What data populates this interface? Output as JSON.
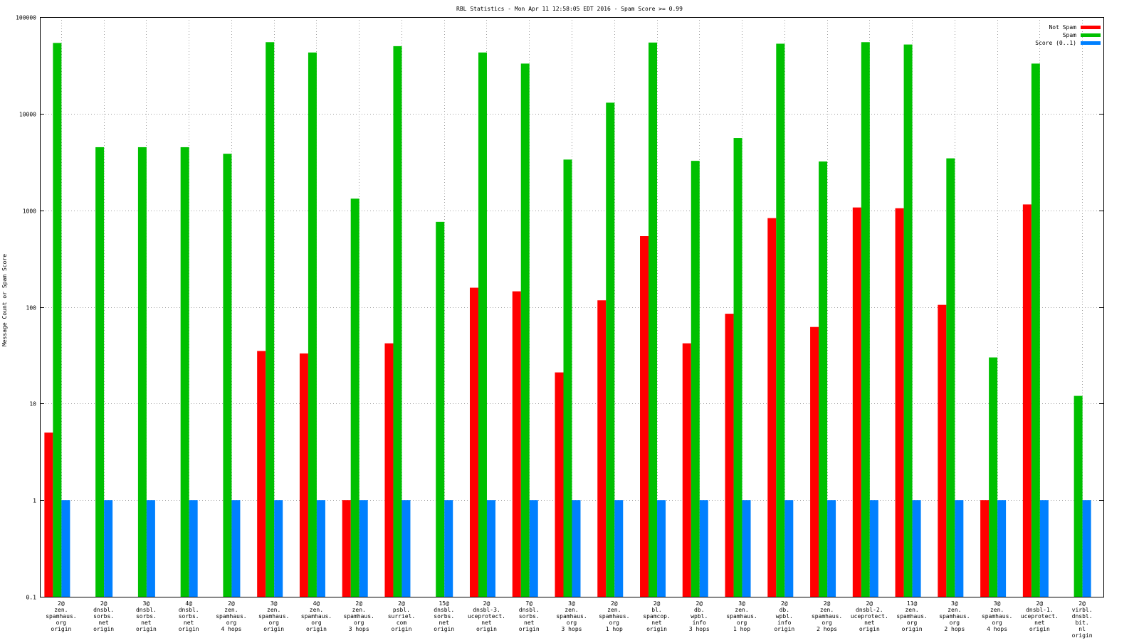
{
  "colors": {
    "not_spam": "#ff0000",
    "spam": "#00c000",
    "score": "#0080ff",
    "grid": "#a0a0a0",
    "axis": "#000000",
    "background": "#ffffff"
  },
  "chart_data": {
    "type": "bar",
    "title": "RBL Statistics - Mon Apr 11 12:58:05 EDT 2016 - Spam Score >= 0.99",
    "xlabel": "",
    "ylabel": "Message Count or Spam Score",
    "yscale": "log",
    "ylim": [
      0.1,
      100000
    ],
    "yticks": [
      "0.1",
      "1",
      "10",
      "100",
      "1000",
      "10000",
      "100000"
    ],
    "grid": true,
    "legend_position": "top-right",
    "categories": [
      [
        "2@",
        "zen.",
        "spamhaus.",
        "org",
        "origin"
      ],
      [
        "2@",
        "dnsbl.",
        "sorbs.",
        "net",
        "origin"
      ],
      [
        "3@",
        "dnsbl.",
        "sorbs.",
        "net",
        "origin"
      ],
      [
        "4@",
        "dnsbl.",
        "sorbs.",
        "net",
        "origin"
      ],
      [
        "2@",
        "zen.",
        "spamhaus.",
        "org",
        "4 hops"
      ],
      [
        "3@",
        "zen.",
        "spamhaus.",
        "org",
        "origin"
      ],
      [
        "4@",
        "zen.",
        "spamhaus.",
        "org",
        "origin"
      ],
      [
        "2@",
        "zen.",
        "spamhaus.",
        "org",
        "3 hops"
      ],
      [
        "2@",
        "psbl.",
        "surriel.",
        "com",
        "origin"
      ],
      [
        "15@",
        "dnsbl.",
        "sorbs.",
        "net",
        "origin"
      ],
      [
        "2@",
        "dnsbl-3.",
        "uceprotect.",
        "net",
        "origin"
      ],
      [
        "7@",
        "dnsbl.",
        "sorbs.",
        "net",
        "origin"
      ],
      [
        "3@",
        "zen.",
        "spamhaus.",
        "org",
        "3 hops"
      ],
      [
        "2@",
        "zen.",
        "spamhaus.",
        "org",
        "1 hop"
      ],
      [
        "2@",
        "bl.",
        "spamcop.",
        "net",
        "origin"
      ],
      [
        "2@",
        "db.",
        "wpbl.",
        "info",
        "3 hops"
      ],
      [
        "3@",
        "zen.",
        "spamhaus.",
        "org",
        "1 hop"
      ],
      [
        "2@",
        "db.",
        "wpbl.",
        "info",
        "origin"
      ],
      [
        "2@",
        "zen.",
        "spamhaus.",
        "org",
        "2 hops"
      ],
      [
        "2@",
        "dnsbl-2.",
        "uceprotect.",
        "net",
        "origin"
      ],
      [
        "11@",
        "zen.",
        "spamhaus.",
        "org",
        "origin"
      ],
      [
        "3@",
        "zen.",
        "spamhaus.",
        "org",
        "2 hops"
      ],
      [
        "3@",
        "zen.",
        "spamhaus.",
        "org",
        "4 hops"
      ],
      [
        "2@",
        "dnsbl-1.",
        "uceprotect.",
        "net",
        "origin"
      ],
      [
        "2@",
        "virbl.",
        "dnsbl.",
        "bit.",
        "nl",
        "origin"
      ]
    ],
    "series": [
      {
        "name": "Not Spam",
        "color": "#ff0000",
        "values": [
          5,
          null,
          null,
          null,
          null,
          35,
          33,
          1,
          42,
          null,
          158,
          145,
          21,
          117,
          540,
          42,
          85,
          830,
          62,
          1070,
          1050,
          105,
          1,
          1150,
          null
        ]
      },
      {
        "name": "Spam",
        "color": "#00c000",
        "values": [
          54000,
          4500,
          4500,
          4500,
          3850,
          55000,
          43000,
          1320,
          50000,
          760,
          43000,
          33000,
          3350,
          13000,
          54500,
          3250,
          5600,
          53000,
          3200,
          55000,
          52000,
          3450,
          30,
          33000,
          12
        ]
      },
      {
        "name": "Score (0..1)",
        "color": "#0080ff",
        "values": [
          1,
          1,
          1,
          1,
          1,
          1,
          1,
          1,
          1,
          1,
          1,
          1,
          1,
          1,
          1,
          1,
          1,
          1,
          1,
          1,
          1,
          1,
          1,
          1,
          1
        ]
      }
    ]
  }
}
